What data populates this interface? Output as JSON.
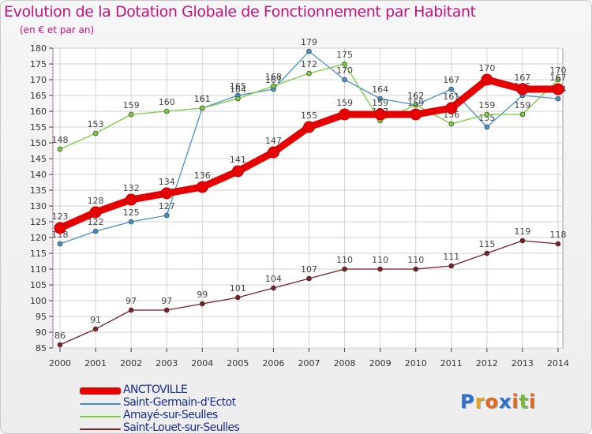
{
  "chart_data": {
    "type": "line",
    "title": "Evolution de la Dotation Globale de Fonctionnement par Habitant",
    "subtitle": "(en € et par an)",
    "x": [
      "2000",
      "2001",
      "2002",
      "2003",
      "2004",
      "2005",
      "2006",
      "2007",
      "2008",
      "2009",
      "2010",
      "2011",
      "2012",
      "2013",
      "2014"
    ],
    "ylim": [
      85,
      180
    ],
    "yticks": [
      85,
      90,
      95,
      100,
      105,
      110,
      115,
      120,
      125,
      130,
      135,
      140,
      145,
      150,
      155,
      160,
      165,
      170,
      175,
      180
    ],
    "grid": true,
    "series": [
      {
        "name": "ANCTOVILLE",
        "color": "#e60000",
        "emphasis": true,
        "values": [
          123,
          128,
          132,
          134,
          136,
          141,
          147,
          155,
          159,
          159,
          159,
          161,
          170,
          167,
          167
        ]
      },
      {
        "name": "Saint-Germain-d'Ectot",
        "color": "#4a90c8",
        "emphasis": false,
        "values": [
          118,
          122,
          125,
          127,
          161,
          165,
          167,
          179,
          170,
          164,
          162,
          167,
          155,
          165,
          164
        ]
      },
      {
        "name": "Amayé-sur-Seulles",
        "color": "#7acb3c",
        "emphasis": false,
        "values": [
          148,
          153,
          159,
          160,
          161,
          164,
          168,
          172,
          175,
          157,
          162,
          156,
          159,
          159,
          170
        ]
      },
      {
        "name": "Saint-Louet-sur-Seulles",
        "color": "#7a1f26",
        "emphasis": false,
        "values": [
          86,
          91,
          97,
          97,
          99,
          101,
          104,
          107,
          110,
          110,
          110,
          111,
          115,
          119,
          118
        ]
      }
    ]
  },
  "logo": {
    "text": "Proxiti",
    "letters": [
      "P",
      "r",
      "o",
      "x",
      "i",
      "t",
      "i"
    ],
    "colors": [
      "#2f6fc8",
      "#e8a31c",
      "#e06a1a",
      "#2f6fc8",
      "#e06a1a",
      "#7ab83a",
      "#e06a1a"
    ]
  }
}
